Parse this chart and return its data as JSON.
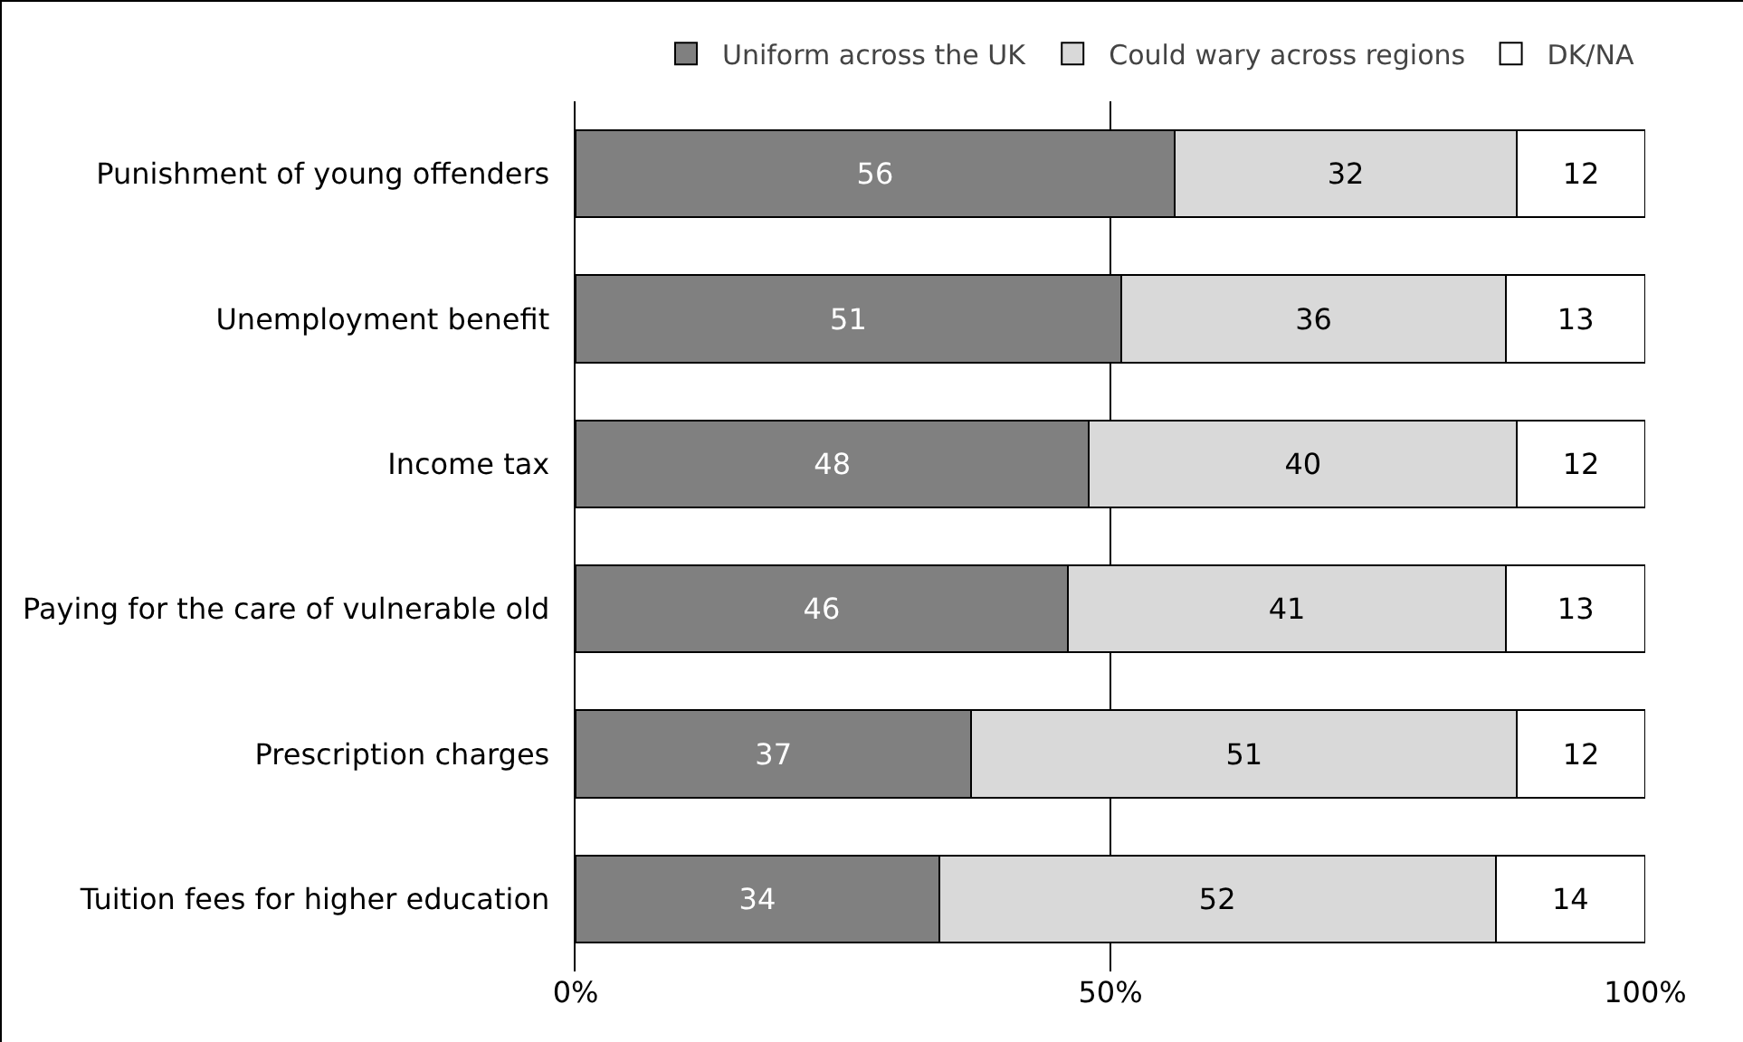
{
  "chart_data": {
    "type": "bar",
    "orientation": "horizontal",
    "stacked": true,
    "categories": [
      "Punishment of young offenders",
      "Unemployment benefit",
      "Income tax",
      "Paying for the care of vulnerable old",
      "Prescription charges",
      "Tuition fees for higher education"
    ],
    "series": [
      {
        "name": "Uniform across the UK",
        "color": "#808080",
        "values": [
          56,
          51,
          48,
          46,
          37,
          34
        ]
      },
      {
        "name": "Could wary across regions",
        "color": "#d9d9d9",
        "values": [
          32,
          36,
          40,
          41,
          51,
          52
        ]
      },
      {
        "name": "DK/NA",
        "color": "#ffffff",
        "values": [
          12,
          13,
          12,
          13,
          12,
          14
        ]
      }
    ],
    "xlim": [
      0,
      100
    ],
    "xticks": [
      {
        "value": 0,
        "label": "0%"
      },
      {
        "value": 50,
        "label": "50%"
      },
      {
        "value": 100,
        "label": "100%"
      }
    ],
    "grid": "x",
    "legend": "top right",
    "data_labels": true
  }
}
